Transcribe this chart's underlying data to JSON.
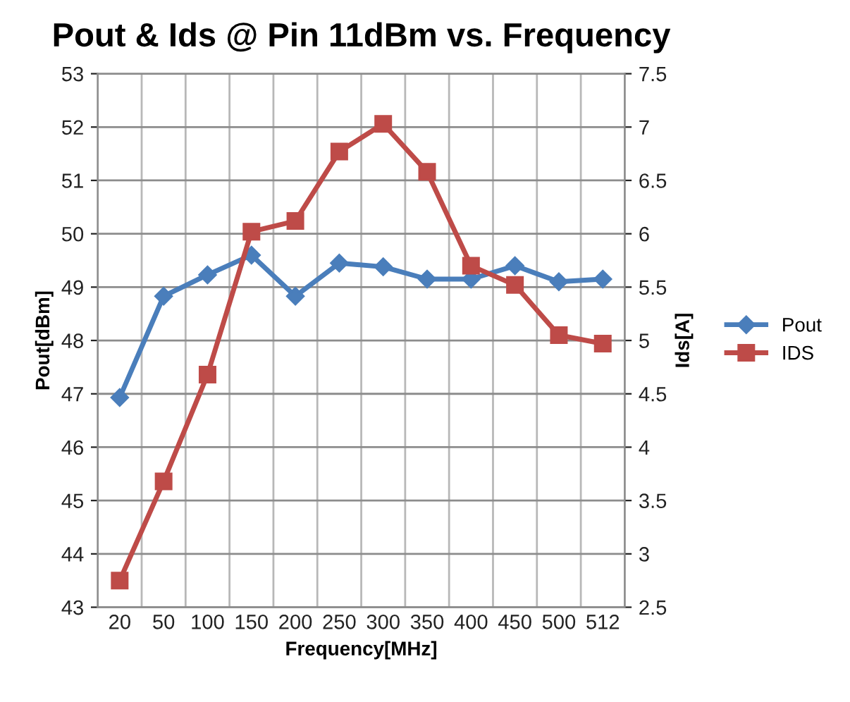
{
  "chart_data": {
    "type": "line",
    "title": "Pout & Ids @ Pin 11dBm vs. Frequency",
    "xlabel": "Frequency[MHz]",
    "ylabel": "Pout[dBm]",
    "y2label": "Ids[A]",
    "categories": [
      "20",
      "50",
      "100",
      "150",
      "200",
      "250",
      "300",
      "350",
      "400",
      "450",
      "500",
      "512"
    ],
    "series": [
      {
        "name": "Pout",
        "color": "#4a7ebb",
        "marker": "diamond",
        "values": [
          46.93,
          48.83,
          49.23,
          49.6,
          48.83,
          49.45,
          49.38,
          49.15,
          49.15,
          49.4,
          49.1,
          49.15
        ]
      },
      {
        "name": "IDS",
        "color": "#be4b48",
        "marker": "square",
        "axis": "y2",
        "values": [
          2.75,
          3.68,
          4.68,
          6.02,
          6.12,
          6.77,
          7.03,
          6.58,
          5.7,
          5.52,
          5.05,
          4.97
        ]
      }
    ],
    "ylim": [
      43,
      53
    ],
    "yticks": [
      43,
      44,
      45,
      46,
      47,
      48,
      49,
      50,
      51,
      52,
      53
    ],
    "y2lim": [
      2.5,
      7.5
    ],
    "y2ticks": [
      2.5,
      3,
      3.5,
      4,
      4.5,
      5,
      5.5,
      6,
      6.5,
      7,
      7.5
    ],
    "grid": true,
    "legend": "right",
    "line_style": "solid"
  }
}
